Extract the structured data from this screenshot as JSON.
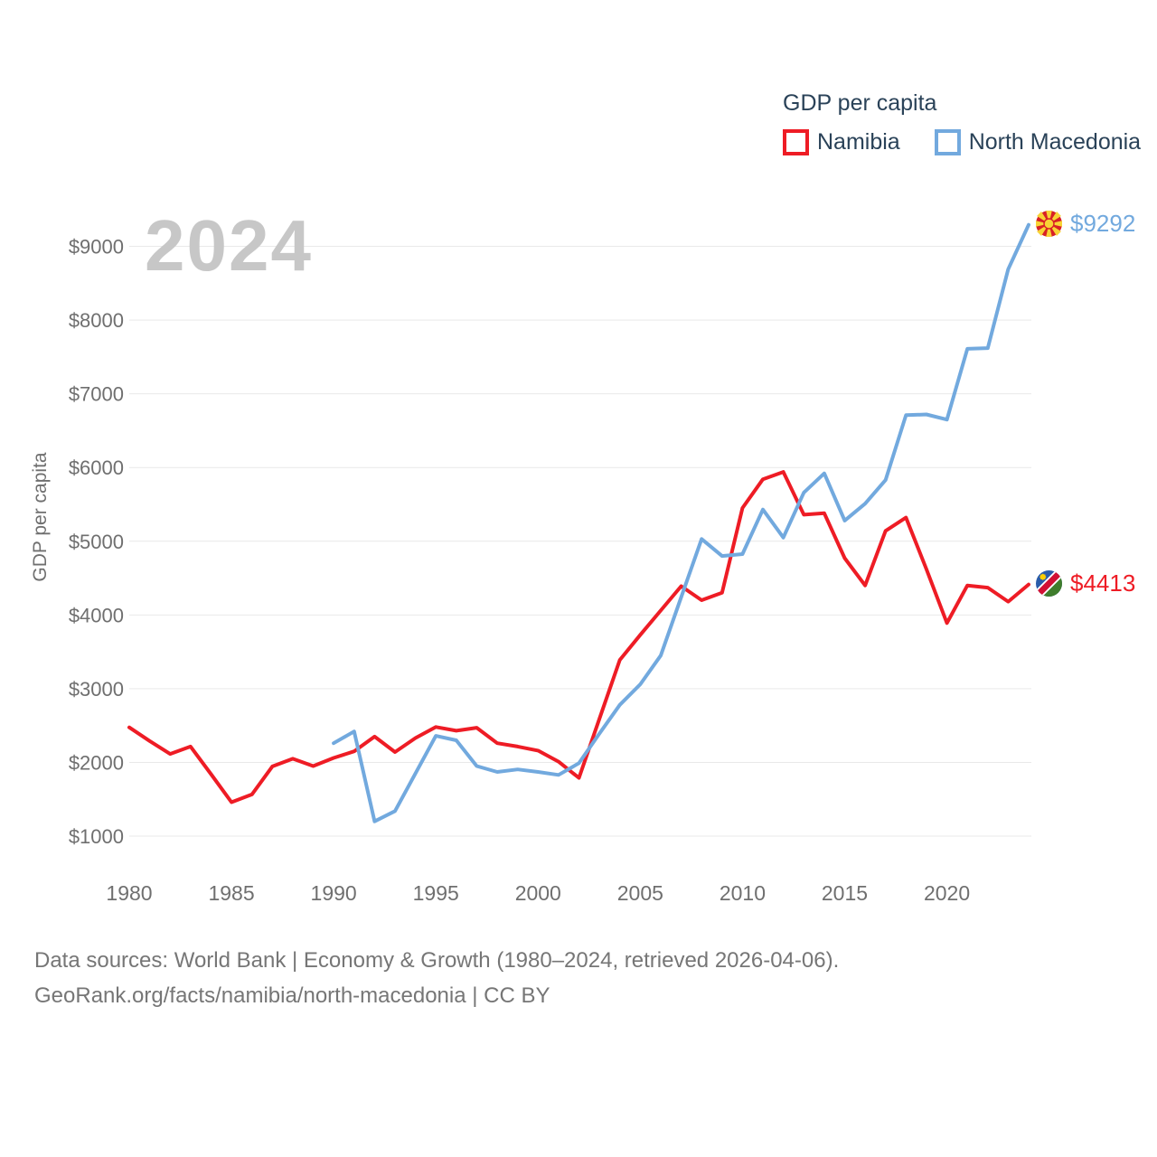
{
  "watermark": "2024",
  "legend": {
    "title": "GDP per capita",
    "series": [
      {
        "label": "Namibia",
        "color": "#ee1c25"
      },
      {
        "label": "North Macedonia",
        "color": "#72a9de"
      }
    ]
  },
  "y_axis": {
    "label": "GDP per capita",
    "ticks": [
      "$1000",
      "$2000",
      "$3000",
      "$4000",
      "$5000",
      "$6000",
      "$7000",
      "$8000",
      "$9000"
    ]
  },
  "x_axis": {
    "ticks": [
      "1980",
      "1985",
      "1990",
      "1995",
      "2000",
      "2005",
      "2010",
      "2015",
      "2020"
    ]
  },
  "end_labels": [
    {
      "series": "north-macedonia",
      "text": "$9292",
      "value": 9292,
      "color": "#72a9de",
      "flag": "north-macedonia-flag"
    },
    {
      "series": "namibia",
      "text": "$4413",
      "value": 4413,
      "color": "#ee1c25",
      "flag": "namibia-flag"
    }
  ],
  "footer": {
    "line1": "Data sources: World Bank | Economy & Growth (1980–2024, retrieved 2026-04-06).",
    "line2": "GeoRank.org/facts/namibia/north-macedonia | CC BY"
  },
  "chart_data": {
    "type": "line",
    "title": "GDP per capita",
    "ylabel": "GDP per capita",
    "xlim": [
      1980,
      2024
    ],
    "ylim": [
      1000,
      9292
    ],
    "grid": "horizontal",
    "legend_position": "top-right",
    "x": [
      1980,
      1981,
      1982,
      1983,
      1984,
      1985,
      1986,
      1987,
      1988,
      1989,
      1990,
      1991,
      1992,
      1993,
      1994,
      1995,
      1996,
      1997,
      1998,
      1999,
      2000,
      2001,
      2002,
      2003,
      2004,
      2005,
      2006,
      2007,
      2008,
      2009,
      2010,
      2011,
      2012,
      2013,
      2014,
      2015,
      2016,
      2017,
      2018,
      2019,
      2020,
      2021,
      2022,
      2023,
      2024
    ],
    "series": [
      {
        "id": "namibia",
        "name": "Namibia",
        "color": "#ee1c25",
        "values": [
          2475,
          2290,
          2115,
          2215,
          1840,
          1460,
          1565,
          1945,
          2050,
          1950,
          2060,
          2150,
          2350,
          2140,
          2330,
          2480,
          2430,
          2470,
          2260,
          2215,
          2160,
          2010,
          1790,
          2590,
          3390,
          3730,
          4060,
          4390,
          4200,
          4300,
          5450,
          5840,
          5940,
          5360,
          5380,
          4770,
          4400,
          5140,
          5320,
          4620,
          3890,
          4400,
          4370,
          4180,
          4413
        ]
      },
      {
        "id": "north-macedonia",
        "name": "North Macedonia",
        "color": "#72a9de",
        "values": [
          null,
          null,
          null,
          null,
          null,
          null,
          null,
          null,
          null,
          null,
          2260,
          2420,
          1200,
          1340,
          1850,
          2360,
          2300,
          1950,
          1870,
          1905,
          1870,
          1830,
          1990,
          2390,
          2780,
          3060,
          3450,
          4240,
          5030,
          4800,
          4825,
          5430,
          5050,
          5660,
          5920,
          5280,
          5510,
          5830,
          6710,
          6720,
          6650,
          7610,
          7620,
          8690,
          9292
        ]
      }
    ]
  }
}
